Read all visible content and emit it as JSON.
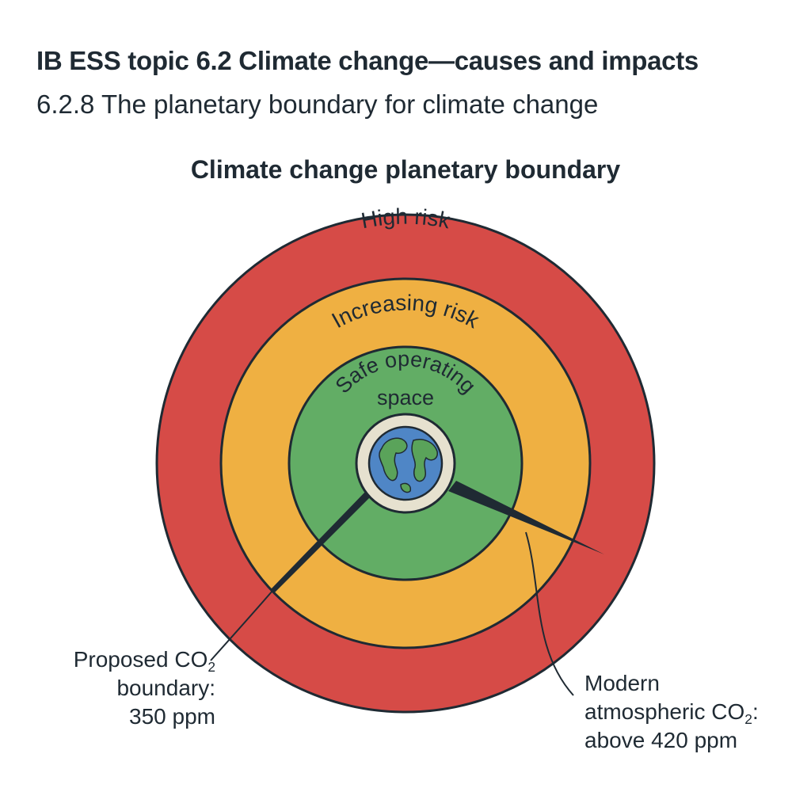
{
  "header": {
    "topic": "IB ESS topic 6.2 Climate change—causes and impacts",
    "subtopic": "6.2.8 The planetary boundary for climate change"
  },
  "diagram": {
    "title": "Climate change planetary boundary",
    "zones": {
      "outer": "High risk",
      "middle": "Increasing risk",
      "inner_line1": "Safe operating",
      "inner_line2": "space"
    },
    "colors": {
      "high_risk": "#d64b47",
      "increasing_risk": "#efb042",
      "safe_space": "#62ad65",
      "earth_ocean": "#4f86c6",
      "earth_land": "#5aa35a",
      "outline": "#1f2a33"
    },
    "icons": {
      "center": "earth-globe-icon"
    },
    "callout_left": {
      "line1_prefix": "Proposed CO",
      "line1_sub": "2",
      "line2": "boundary:",
      "line3": "350 ppm"
    },
    "callout_right": {
      "line1": "Modern",
      "line2_prefix": "atmospheric CO",
      "line2_sub": "2",
      "line2_suffix": ":",
      "line3": "above 420 ppm"
    }
  }
}
